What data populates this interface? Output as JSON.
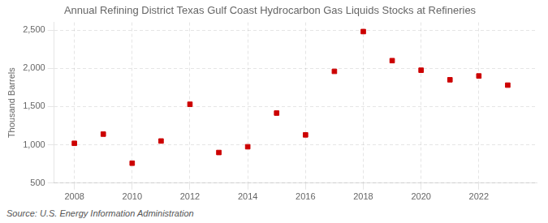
{
  "chart_data": {
    "type": "scatter",
    "title": "Annual Refining District Texas Gulf Coast Hydrocarbon Gas Liquids Stocks at Refineries",
    "ylabel": "Thousand Barrels",
    "source": "Source: U.S. Energy Information Administration",
    "x": [
      2008,
      2009,
      2010,
      2011,
      2012,
      2013,
      2014,
      2015,
      2016,
      2017,
      2018,
      2019,
      2020,
      2021,
      2022,
      2023
    ],
    "values": [
      1020,
      1140,
      760,
      1050,
      1530,
      900,
      975,
      1415,
      1130,
      1960,
      2480,
      2100,
      1975,
      1850,
      1900,
      1780
    ],
    "color": "#cc0000",
    "marker": "square",
    "xlim": [
      2007.3,
      2024.0
    ],
    "xticks": [
      2008,
      2010,
      2012,
      2014,
      2016,
      2018,
      2020,
      2022
    ],
    "ylim": [
      500,
      2600
    ],
    "yticks": [
      500,
      {
        "value": 1000,
        "label": "1,000"
      },
      {
        "value": 1500,
        "label": "1,500"
      },
      {
        "value": 2000,
        "label": "2,000"
      },
      {
        "value": 2500,
        "label": "2,500"
      }
    ],
    "grid": true
  }
}
